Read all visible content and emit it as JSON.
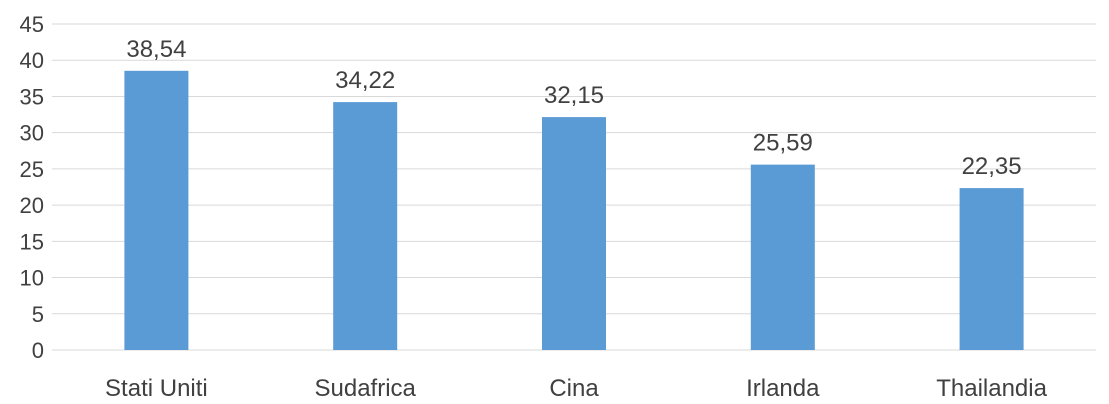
{
  "chart_data": {
    "type": "bar",
    "title": "",
    "xlabel": "",
    "ylabel": "",
    "categories": [
      "Stati Uniti",
      "Sudafrica",
      "Cina",
      "Irlanda",
      "Thailandia"
    ],
    "values": [
      38.54,
      34.22,
      32.15,
      25.59,
      22.35
    ],
    "value_labels": [
      "38,54",
      "34,22",
      "32,15",
      "25,59",
      "22,35"
    ],
    "ylim": [
      0,
      45
    ],
    "yticks": [
      0,
      5,
      10,
      15,
      20,
      25,
      30,
      35,
      40,
      45
    ],
    "grid": true,
    "legend": "none",
    "bar_color": "#5b9bd5"
  }
}
